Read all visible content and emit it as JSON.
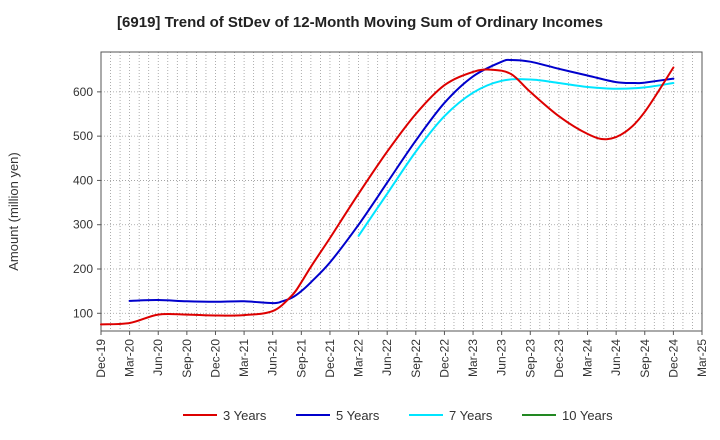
{
  "chart_data": {
    "type": "line",
    "title": "[6919]  Trend of StDev of 12-Month Moving Sum of Ordinary Incomes",
    "xlabel": "",
    "ylabel": "Amount (million yen)",
    "ylim": [
      60,
      690
    ],
    "yticks": [
      100,
      200,
      300,
      400,
      500,
      600
    ],
    "x_tick_labels": [
      "Dec-19",
      "Mar-20",
      "Jun-20",
      "Sep-20",
      "Dec-20",
      "Mar-21",
      "Jun-21",
      "Sep-21",
      "Dec-21",
      "Mar-22",
      "Jun-22",
      "Sep-22",
      "Dec-22",
      "Mar-23",
      "Jun-23",
      "Sep-23",
      "Dec-23",
      "Mar-24",
      "Jun-24",
      "Sep-24",
      "Dec-24",
      "Mar-25"
    ],
    "grid": true,
    "legend_position": "bottom",
    "series": [
      {
        "name": "3 Years",
        "color": "#dd0000",
        "x": [
          "Dec-19",
          "Mar-20",
          "Jun-20",
          "Sep-20",
          "Dec-20",
          "Mar-21",
          "Jun-21",
          "Aug-21",
          "Sep-21",
          "Oct-21",
          "Dec-21",
          "Mar-22",
          "Jun-22",
          "Sep-22",
          "Dec-22",
          "Mar-23",
          "May-23",
          "Jul-23",
          "Sep-23",
          "Dec-23",
          "Mar-24",
          "May-24",
          "Jul-24",
          "Sep-24",
          "Dec-24"
        ],
        "values": [
          75,
          78,
          97,
          97,
          95,
          96,
          105,
          140,
          170,
          205,
          270,
          370,
          465,
          550,
          615,
          645,
          650,
          640,
          600,
          545,
          505,
          493,
          510,
          555,
          655
        ]
      },
      {
        "name": "5 Years",
        "color": "#0000cc",
        "x": [
          "Mar-20",
          "Jun-20",
          "Sep-20",
          "Dec-20",
          "Mar-21",
          "Jun-21",
          "Jul-21",
          "Aug-21",
          "Sep-21",
          "Oct-21",
          "Dec-21",
          "Mar-22",
          "Jun-22",
          "Sep-22",
          "Dec-22",
          "Mar-23",
          "Jun-23",
          "Jul-23",
          "Sep-23",
          "Dec-23",
          "Mar-24",
          "Jun-24",
          "Aug-24",
          "Sep-24",
          "Dec-24"
        ],
        "values": [
          128,
          130,
          127,
          126,
          127,
          123,
          127,
          135,
          150,
          170,
          215,
          300,
          395,
          490,
          575,
          635,
          668,
          672,
          668,
          652,
          637,
          622,
          620,
          621,
          630
        ]
      },
      {
        "name": "7 Years",
        "color": "#00e5ff",
        "x": [
          "Mar-22",
          "Jun-22",
          "Sep-22",
          "Dec-22",
          "Mar-23",
          "Jun-23",
          "Sep-23",
          "Dec-23",
          "Mar-24",
          "Jun-24",
          "Sep-24",
          "Dec-24"
        ],
        "values": [
          275,
          370,
          465,
          545,
          598,
          625,
          628,
          620,
          611,
          607,
          610,
          620
        ]
      },
      {
        "name": "10 Years",
        "color": "#228822",
        "x": [],
        "values": []
      }
    ]
  }
}
